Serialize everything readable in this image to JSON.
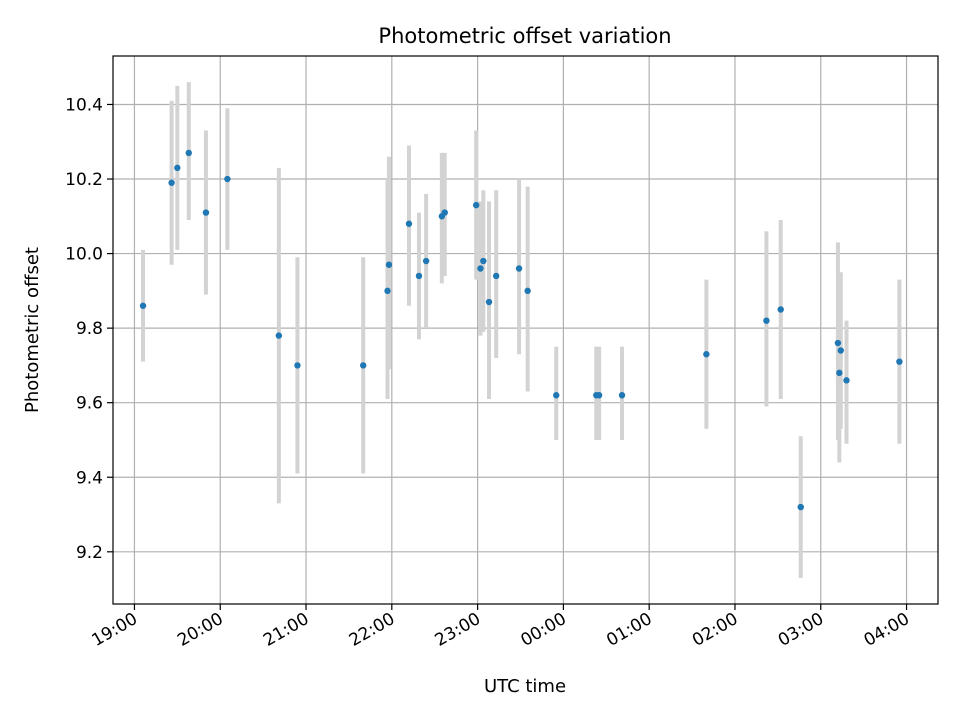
{
  "chart_data": {
    "type": "scatter",
    "title": "Photometric offset variation",
    "xlabel": "UTC time",
    "ylabel": "Photometric offset",
    "x_axis": {
      "kind": "time",
      "range": [
        "18:45",
        "04:22"
      ],
      "ticks": [
        {
          "t": "19:00",
          "label": "19:00"
        },
        {
          "t": "20:00",
          "label": "20:00"
        },
        {
          "t": "21:00",
          "label": "21:00"
        },
        {
          "t": "22:00",
          "label": "22:00"
        },
        {
          "t": "23:00",
          "label": "23:00"
        },
        {
          "t": "00:00",
          "label": "00:00"
        },
        {
          "t": "01:00",
          "label": "01:00"
        },
        {
          "t": "02:00",
          "label": "02:00"
        },
        {
          "t": "03:00",
          "label": "03:00"
        },
        {
          "t": "04:00",
          "label": "04:00"
        }
      ]
    },
    "ylim": [
      9.06,
      10.53
    ],
    "y_ticks": [
      {
        "v": 9.2,
        "label": "9.2"
      },
      {
        "v": 9.4,
        "label": "9.4"
      },
      {
        "v": 9.6,
        "label": "9.6"
      },
      {
        "v": 9.8,
        "label": "9.8"
      },
      {
        "v": 10.0,
        "label": "10.0"
      },
      {
        "v": 10.2,
        "label": "10.2"
      },
      {
        "v": 10.4,
        "label": "10.4"
      }
    ],
    "grid": true,
    "point_color": "#1f77b4",
    "errorbar_color": "#d3d3d3",
    "points": [
      {
        "t": "19:06",
        "y": 9.86,
        "lo": 9.71,
        "hi": 10.01
      },
      {
        "t": "19:26",
        "y": 10.19,
        "lo": 9.97,
        "hi": 10.41
      },
      {
        "t": "19:30",
        "y": 10.23,
        "lo": 10.01,
        "hi": 10.45
      },
      {
        "t": "19:38",
        "y": 10.27,
        "lo": 10.09,
        "hi": 10.46
      },
      {
        "t": "19:50",
        "y": 10.11,
        "lo": 9.89,
        "hi": 10.33
      },
      {
        "t": "20:05",
        "y": 10.2,
        "lo": 10.01,
        "hi": 10.39
      },
      {
        "t": "20:41",
        "y": 9.78,
        "lo": 9.33,
        "hi": 10.23
      },
      {
        "t": "20:54",
        "y": 9.7,
        "lo": 9.41,
        "hi": 9.99
      },
      {
        "t": "21:40",
        "y": 9.7,
        "lo": 9.41,
        "hi": 9.99
      },
      {
        "t": "21:57",
        "y": 9.9,
        "lo": 9.61,
        "hi": 10.2
      },
      {
        "t": "21:58",
        "y": 9.97,
        "lo": 9.69,
        "hi": 10.26
      },
      {
        "t": "22:12",
        "y": 10.08,
        "lo": 9.86,
        "hi": 10.29
      },
      {
        "t": "22:19",
        "y": 9.94,
        "lo": 9.77,
        "hi": 10.11
      },
      {
        "t": "22:24",
        "y": 9.98,
        "lo": 9.8,
        "hi": 10.16
      },
      {
        "t": "22:35",
        "y": 10.1,
        "lo": 9.92,
        "hi": 10.27
      },
      {
        "t": "22:37",
        "y": 10.11,
        "lo": 9.94,
        "hi": 10.27
      },
      {
        "t": "22:59",
        "y": 10.13,
        "lo": 9.93,
        "hi": 10.33
      },
      {
        "t": "23:02",
        "y": 9.96,
        "lo": 9.78,
        "hi": 10.14
      },
      {
        "t": "23:04",
        "y": 9.98,
        "lo": 9.79,
        "hi": 10.17
      },
      {
        "t": "23:08",
        "y": 9.87,
        "lo": 9.61,
        "hi": 10.14
      },
      {
        "t": "23:13",
        "y": 9.94,
        "lo": 9.72,
        "hi": 10.17
      },
      {
        "t": "23:29",
        "y": 9.96,
        "lo": 9.73,
        "hi": 10.2
      },
      {
        "t": "23:35",
        "y": 9.9,
        "lo": 9.63,
        "hi": 10.18
      },
      {
        "t": "23:55",
        "y": 9.62,
        "lo": 9.5,
        "hi": 9.75
      },
      {
        "t": "00:23",
        "y": 9.62,
        "lo": 9.5,
        "hi": 9.75
      },
      {
        "t": "00:25",
        "y": 9.62,
        "lo": 9.5,
        "hi": 9.75
      },
      {
        "t": "00:41",
        "y": 9.62,
        "lo": 9.5,
        "hi": 9.75
      },
      {
        "t": "01:40",
        "y": 9.73,
        "lo": 9.53,
        "hi": 9.93
      },
      {
        "t": "02:22",
        "y": 9.82,
        "lo": 9.59,
        "hi": 10.06
      },
      {
        "t": "02:32",
        "y": 9.85,
        "lo": 9.61,
        "hi": 10.09
      },
      {
        "t": "02:46",
        "y": 9.32,
        "lo": 9.13,
        "hi": 9.51
      },
      {
        "t": "03:12",
        "y": 9.76,
        "lo": 9.5,
        "hi": 10.03
      },
      {
        "t": "03:13",
        "y": 9.68,
        "lo": 9.44,
        "hi": 9.94
      },
      {
        "t": "03:14",
        "y": 9.74,
        "lo": 9.53,
        "hi": 9.95
      },
      {
        "t": "03:18",
        "y": 9.66,
        "lo": 9.49,
        "hi": 9.82
      },
      {
        "t": "03:55",
        "y": 9.71,
        "lo": 9.49,
        "hi": 9.93
      }
    ]
  }
}
